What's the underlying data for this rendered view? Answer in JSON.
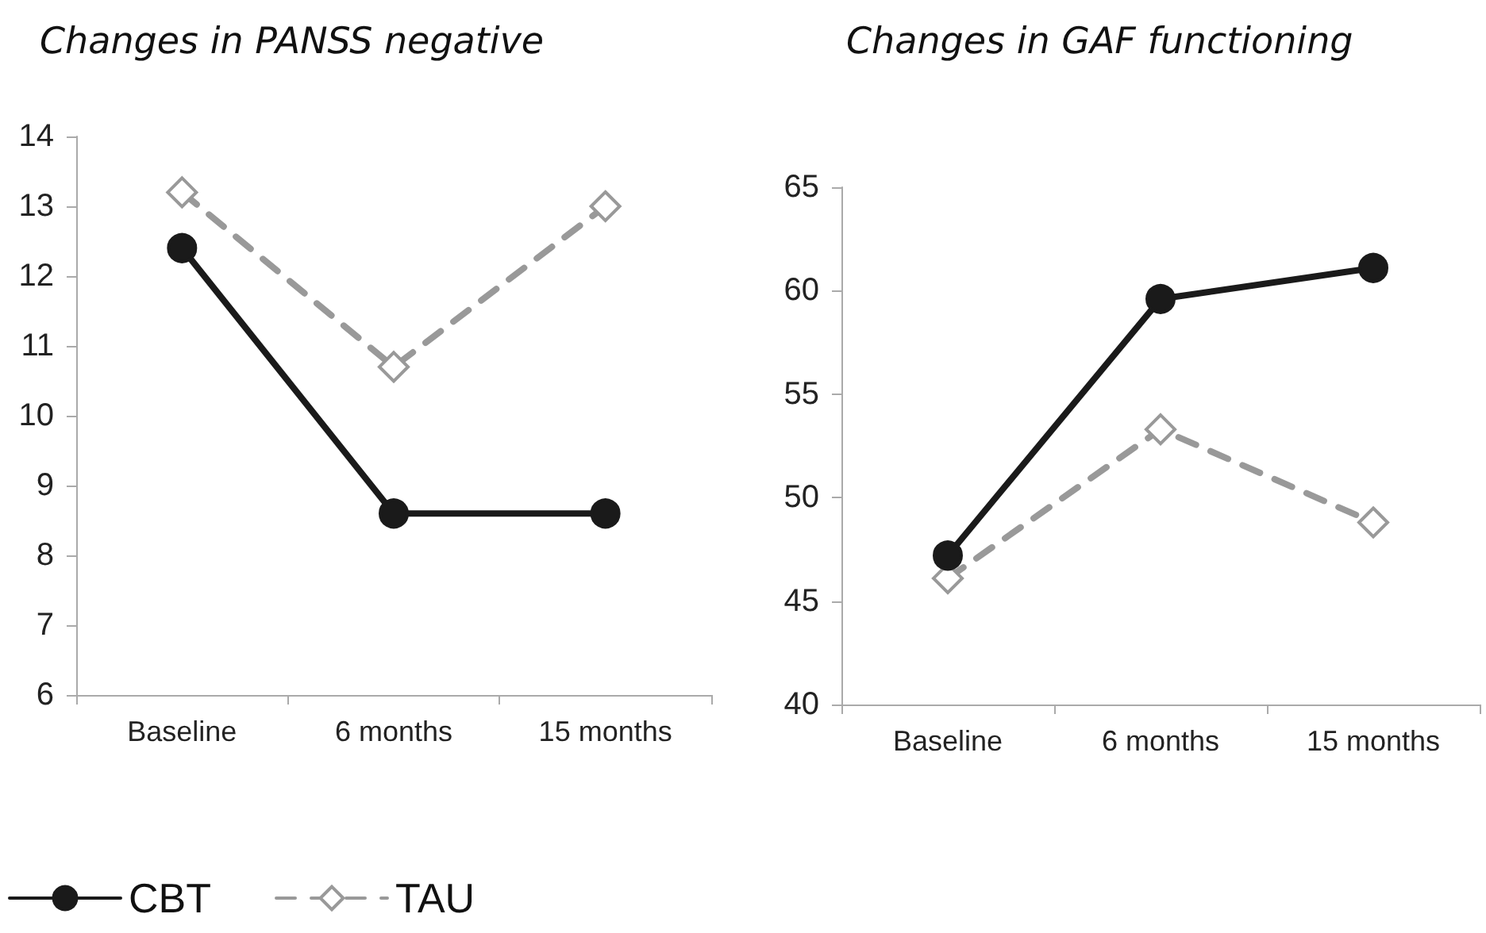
{
  "chart_data": [
    {
      "type": "line",
      "title": "Changes in PANSS negative",
      "categories": [
        "Baseline",
        "6 months",
        "15 months"
      ],
      "ylim": [
        6,
        14
      ],
      "yticks": [
        6,
        7,
        8,
        9,
        10,
        11,
        12,
        13,
        14
      ],
      "grid": false,
      "legend": "bottom left",
      "series": [
        {
          "name": "CBT",
          "color": "#1a1a1a",
          "marker": "circle",
          "line_style": "solid",
          "values": [
            12.4,
            8.6,
            8.6
          ]
        },
        {
          "name": "TAU",
          "color": "#999999",
          "marker": "diamond",
          "line_style": "dashed",
          "values": [
            13.2,
            10.7,
            13.0
          ]
        }
      ]
    },
    {
      "type": "line",
      "title": "Changes in GAF functioning",
      "categories": [
        "Baseline",
        "6 months",
        "15 months"
      ],
      "ylim": [
        40,
        65
      ],
      "yticks": [
        40,
        45,
        50,
        55,
        60,
        65
      ],
      "grid": false,
      "legend": false,
      "series": [
        {
          "color": "#1a1a1a",
          "marker": "circle",
          "line_style": "solid",
          "values": [
            47.2,
            59.6,
            61.1
          ]
        },
        {
          "color": "#999999",
          "marker": "diamond",
          "line_style": "dashed",
          "values": [
            46.1,
            53.3,
            48.8
          ]
        }
      ]
    }
  ]
}
